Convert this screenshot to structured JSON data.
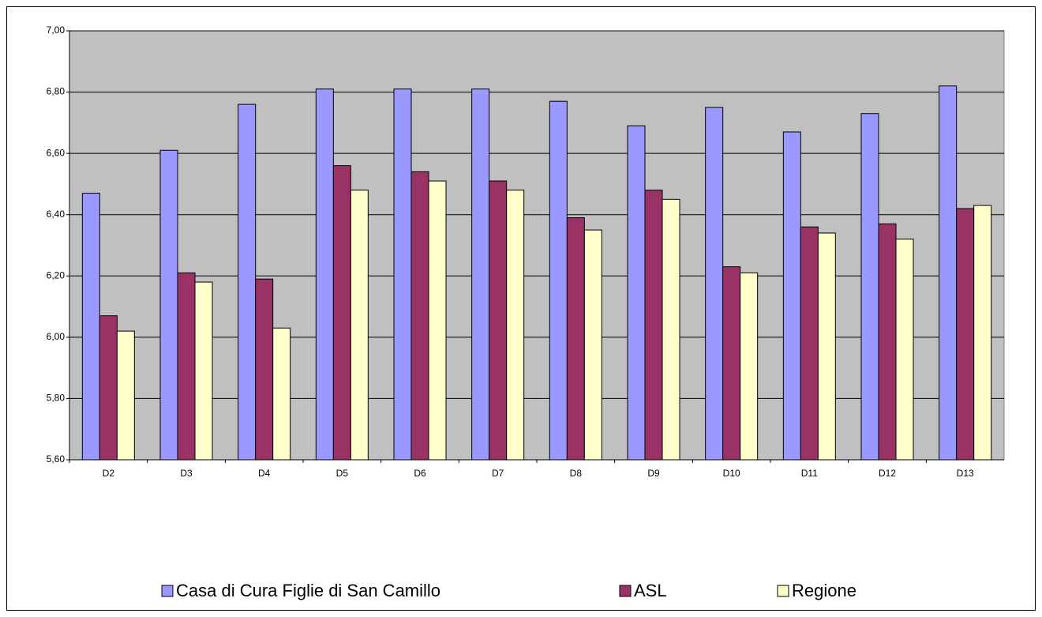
{
  "chart_data": {
    "type": "bar",
    "categories": [
      "D2",
      "D3",
      "D4",
      "D5",
      "D6",
      "D7",
      "D8",
      "D9",
      "D10",
      "D11",
      "D12",
      "D13"
    ],
    "series": [
      {
        "name": "Casa di Cura Figlie di San Camillo",
        "color": "#9999ff",
        "values": [
          6.47,
          6.61,
          6.76,
          6.81,
          6.81,
          6.81,
          6.77,
          6.69,
          6.75,
          6.67,
          6.73,
          6.82
        ]
      },
      {
        "name": "ASL",
        "color": "#993366",
        "values": [
          6.07,
          6.21,
          6.19,
          6.56,
          6.54,
          6.51,
          6.39,
          6.48,
          6.23,
          6.36,
          6.37,
          6.42
        ]
      },
      {
        "name": "Regione",
        "color": "#ffffcc",
        "values": [
          6.02,
          6.18,
          6.03,
          6.48,
          6.51,
          6.48,
          6.35,
          6.45,
          6.21,
          6.34,
          6.32,
          6.43
        ]
      }
    ],
    "ylim": [
      5.6,
      7.0
    ],
    "yticks": [
      {
        "value": 5.6,
        "label": "5,60"
      },
      {
        "value": 5.8,
        "label": "5,80"
      },
      {
        "value": 6.0,
        "label": "6,00"
      },
      {
        "value": 6.2,
        "label": "6,20"
      },
      {
        "value": 6.4,
        "label": "6,40"
      },
      {
        "value": 6.6,
        "label": "6,60"
      },
      {
        "value": 6.8,
        "label": "6,80"
      },
      {
        "value": 7.0,
        "label": "7,00"
      }
    ],
    "grid": true,
    "legend": "bottom"
  }
}
